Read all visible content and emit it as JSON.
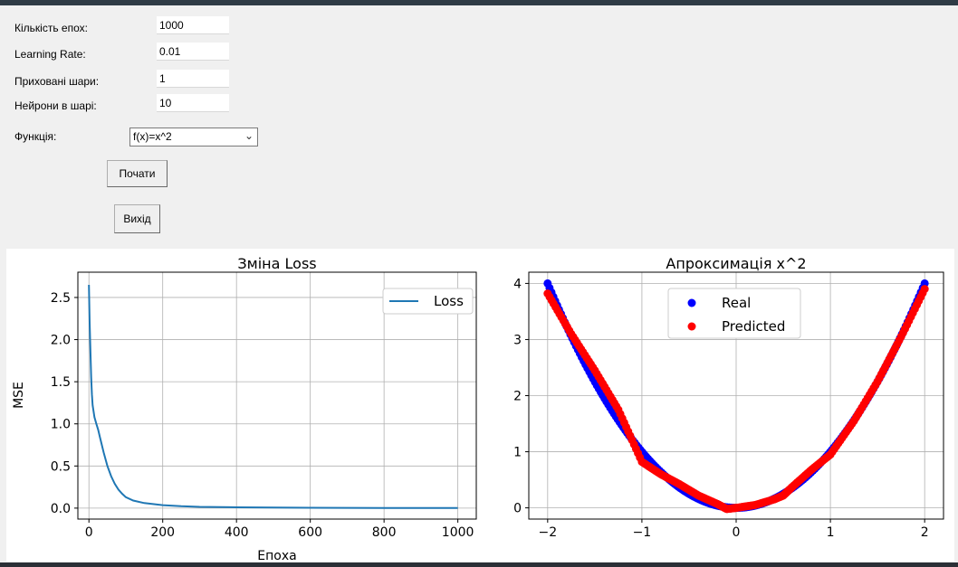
{
  "form": {
    "epochs_label": "Кількість епох:",
    "epochs_value": "1000",
    "lr_label": "Learning Rate:",
    "lr_value": "0.01",
    "hidden_label": "Приховані шари:",
    "hidden_value": "1",
    "neurons_label": "Нейрони в шарі:",
    "neurons_value": "10",
    "function_label": "Функція:",
    "function_value": "f(x)=x^2",
    "start_label": "Почати",
    "exit_label": "Вихід"
  },
  "chart_data": [
    {
      "type": "line",
      "title": "Зміна Loss",
      "xlabel": "Епоха",
      "ylabel": "MSE",
      "xlim": [
        -30,
        1050
      ],
      "ylim": [
        -0.13,
        2.8
      ],
      "xticks": [
        0,
        200,
        400,
        600,
        800,
        1000
      ],
      "yticks": [
        0.0,
        0.5,
        1.0,
        1.5,
        2.0,
        2.5
      ],
      "grid": true,
      "legend": "upper right",
      "series": [
        {
          "name": "Loss",
          "color": "#1f77b4",
          "x": [
            0,
            2,
            4,
            6,
            8,
            10,
            15,
            20,
            25,
            30,
            40,
            50,
            60,
            70,
            80,
            90,
            100,
            120,
            150,
            200,
            250,
            300,
            400,
            500,
            600,
            700,
            800,
            900,
            1000
          ],
          "y": [
            2.65,
            2.2,
            1.85,
            1.55,
            1.35,
            1.22,
            1.08,
            1.0,
            0.93,
            0.84,
            0.66,
            0.5,
            0.38,
            0.29,
            0.22,
            0.17,
            0.13,
            0.09,
            0.06,
            0.035,
            0.022,
            0.015,
            0.009,
            0.006,
            0.004,
            0.003,
            0.002,
            0.002,
            0.001
          ]
        }
      ]
    },
    {
      "type": "scatter",
      "title": "Апроксимація x^2",
      "xlim": [
        -2.2,
        2.2
      ],
      "ylim": [
        -0.2,
        4.2
      ],
      "xticks": [
        -2,
        -1,
        0,
        1,
        2
      ],
      "xticklabels": [
        "−2",
        "−1",
        "0",
        "1",
        "2"
      ],
      "yticks": [
        0,
        1,
        2,
        3,
        4
      ],
      "grid": true,
      "legend": "top-center",
      "series": [
        {
          "name": "Real",
          "color": "#0000ff",
          "function": "x^2",
          "n_points": 200
        },
        {
          "name": "Predicted",
          "color": "#ff0000",
          "x": [
            -2.0,
            -1.75,
            -1.5,
            -1.25,
            -1.0,
            -0.8,
            -0.6,
            -0.4,
            -0.2,
            -0.1,
            0.0,
            0.2,
            0.4,
            0.5,
            0.6,
            0.8,
            1.0,
            1.25,
            1.5,
            1.75,
            2.0
          ],
          "y": [
            3.82,
            3.1,
            2.45,
            1.75,
            0.82,
            0.6,
            0.42,
            0.22,
            0.07,
            -0.02,
            0.0,
            0.05,
            0.15,
            0.22,
            0.38,
            0.68,
            0.95,
            1.55,
            2.25,
            3.05,
            3.9
          ]
        }
      ]
    }
  ]
}
